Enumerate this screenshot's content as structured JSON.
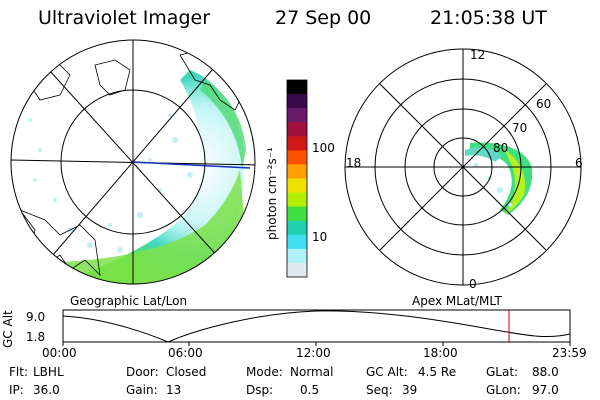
{
  "header": {
    "instrument": "Ultraviolet Imager",
    "date": "27 Sep 00",
    "time": "21:05:38 UT"
  },
  "geo_panel": {
    "label": "Geographic Lat/Lon"
  },
  "colorbar": {
    "unit_label": "photon cm⁻²s⁻¹",
    "tick_100": "100",
    "tick_10": "10",
    "colors": [
      "#000000",
      "#3a0a4a",
      "#6a1a6a",
      "#a0103a",
      "#d01818",
      "#ff5000",
      "#ffa000",
      "#f0e000",
      "#b0f000",
      "#40e040",
      "#20d0b0",
      "#40e0f0",
      "#b0f0f8",
      "#e0e8f0"
    ]
  },
  "polar_panel": {
    "label": "Apex MLat/MLT",
    "mlt_top": "12",
    "mlt_left": "18",
    "mlt_right": "6",
    "mlt_bottom": "0",
    "lat_60": "60",
    "lat_70": "70",
    "lat_80": "80"
  },
  "altitude_plot": {
    "ylabel": "GC Alt",
    "y_max": "9.0",
    "y_min": "1.8",
    "x_ticks": [
      "00:00",
      "06:00",
      "12:00",
      "18:00",
      "23:59"
    ],
    "current_time_color": "#d00000"
  },
  "info": {
    "flt_label": "Flt:",
    "flt_value": "LBHL",
    "ip_label": "IP:",
    "ip_value": "36.0",
    "door_label": "Door:",
    "door_value": "Closed",
    "gain_label": "Gain:",
    "gain_value": "13",
    "mode_label": "Mode:",
    "mode_value": "Normal",
    "dsp_label": "Dsp:",
    "dsp_value": "0.5",
    "gcalt_label": "GC Alt:",
    "gcalt_value": "4.5 Re",
    "seq_label": "Seq:",
    "seq_value": "39",
    "glat_label": "GLat:",
    "glat_value": "88.0",
    "glon_label": "GLon:",
    "glon_value": "97.0"
  }
}
